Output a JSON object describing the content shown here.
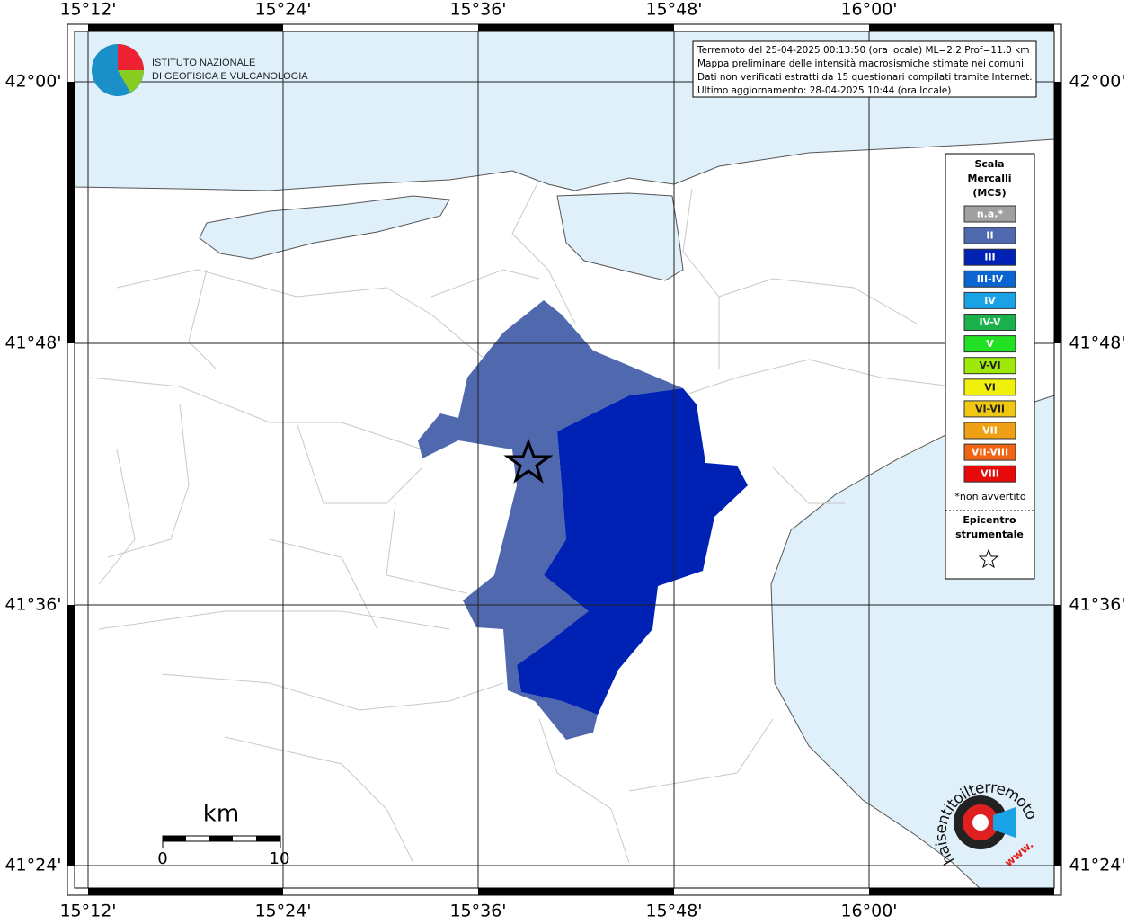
{
  "header": {
    "institute": [
      "ISTITUTO NAZIONALE",
      "DI GEOFISICA E VULCANOLOGIA"
    ]
  },
  "info": {
    "lines": [
      "Terremoto del 25-04-2025 00:13:50 (ora locale) ML=2.2 Prof=11.0 km",
      "Mappa preliminare delle intensità macrosismiche stimate nei comuni",
      "Dati non verificati estratti da 15 questionari compilati tramite Internet.",
      "Ultimo aggiornamento: 28-04-2025 10:44 (ora locale)"
    ]
  },
  "map": {
    "lon_labels": [
      "15°12'",
      "15°24'",
      "15°36'",
      "15°48'",
      "16°00'"
    ],
    "lat_labels": [
      "42°00'",
      "41°48'",
      "41°36'",
      "41°24'"
    ]
  },
  "legend": {
    "title": [
      "Scala",
      "Mercalli",
      "(MCS)"
    ],
    "items": [
      {
        "label": "n.a.*",
        "color": "#a0a0a0"
      },
      {
        "label": "II",
        "color": "#5068ae"
      },
      {
        "label": "III",
        "color": "#0022b4"
      },
      {
        "label": "III-IV",
        "color": "#0a64d2"
      },
      {
        "label": "IV",
        "color": "#1aa2e6"
      },
      {
        "label": "IV-V",
        "color": "#1ab04c"
      },
      {
        "label": "V",
        "color": "#22e022"
      },
      {
        "label": "V-VI",
        "color": "#9ee80a"
      },
      {
        "label": "VI",
        "color": "#f0f00a"
      },
      {
        "label": "VI-VII",
        "color": "#f0c814"
      },
      {
        "label": "VII",
        "color": "#f0a014"
      },
      {
        "label": "VII-VIII",
        "color": "#f06414"
      },
      {
        "label": "VIII",
        "color": "#e60a0a"
      }
    ],
    "note": "*non avvertito",
    "epicenter": [
      "Epicentro",
      "strumentale"
    ]
  },
  "scale_bar": {
    "unit": "km",
    "labels": [
      "0",
      "10"
    ]
  },
  "watermark": {
    "text": "haisentitoilterremoto.it",
    "www": "www."
  }
}
